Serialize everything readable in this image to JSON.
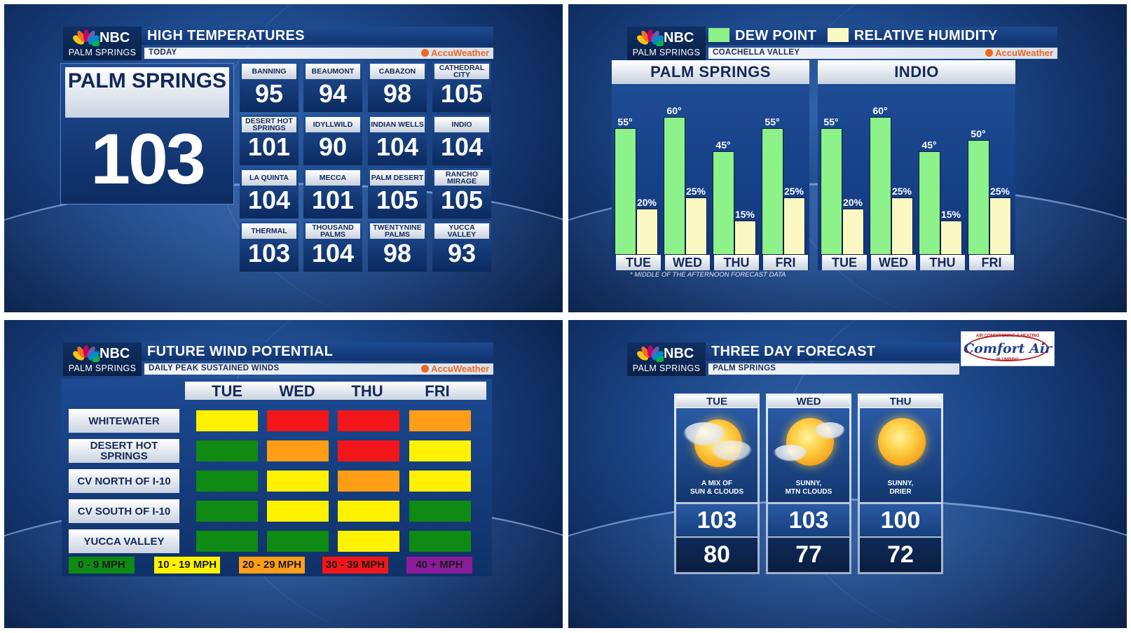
{
  "station": {
    "network": "NBC",
    "city": "PALM SPRINGS",
    "provider": "AccuWeather"
  },
  "panel1": {
    "title": "HIGH TEMPERATURES",
    "subtitle": "TODAY",
    "featured": {
      "name": "PALM SPRINGS",
      "value": "103"
    },
    "tiles": [
      {
        "name": "BANNING",
        "value": "95"
      },
      {
        "name": "BEAUMONT",
        "value": "94"
      },
      {
        "name": "CABAZON",
        "value": "98"
      },
      {
        "name": "CATHEDRAL CITY",
        "value": "105"
      },
      {
        "name": "DESERT HOT SPRINGS",
        "value": "101"
      },
      {
        "name": "IDYLLWILD",
        "value": "90"
      },
      {
        "name": "INDIAN WELLS",
        "value": "104"
      },
      {
        "name": "INDIO",
        "value": "104"
      },
      {
        "name": "LA QUINTA",
        "value": "104"
      },
      {
        "name": "MECCA",
        "value": "101"
      },
      {
        "name": "PALM DESERT",
        "value": "105"
      },
      {
        "name": "RANCHO MIRAGE",
        "value": "105"
      },
      {
        "name": "THERMAL",
        "value": "103"
      },
      {
        "name": "THOUSAND PALMS",
        "value": "104"
      },
      {
        "name": "TWENTYNINE PALMS",
        "value": "98"
      },
      {
        "name": "YUCCA VALLEY",
        "value": "93"
      }
    ]
  },
  "panel2": {
    "title_dew": "DEW POINT",
    "title_rh": "RELATIVE HUMIDITY",
    "subtitle": "COACHELLA VALLEY",
    "footnote": "* MIDDLE OF THE AFTERNOON FORECAST DATA",
    "colors": {
      "dew": "#8df28a",
      "rh": "#fbf8c4"
    }
  },
  "chart_data": [
    {
      "type": "bar",
      "title": "PALM SPRINGS",
      "categories": [
        "TUE",
        "WED",
        "THU",
        "FRI"
      ],
      "series": [
        {
          "name": "DEW POINT",
          "values": [
            55,
            60,
            45,
            55
          ],
          "labels": [
            "55°",
            "60°",
            "45°",
            "55°"
          ]
        },
        {
          "name": "RELATIVE HUMIDITY",
          "values": [
            20,
            25,
            15,
            25
          ],
          "labels": [
            "20%",
            "25%",
            "15%",
            "25%"
          ]
        }
      ]
    },
    {
      "type": "bar",
      "title": "INDIO",
      "categories": [
        "TUE",
        "WED",
        "THU",
        "FRI"
      ],
      "series": [
        {
          "name": "DEW POINT",
          "values": [
            55,
            60,
            45,
            50
          ],
          "labels": [
            "55°",
            "60°",
            "45°",
            "50°"
          ]
        },
        {
          "name": "RELATIVE HUMIDITY",
          "values": [
            20,
            25,
            15,
            25
          ],
          "labels": [
            "20%",
            "25%",
            "15%",
            "25%"
          ]
        }
      ]
    }
  ],
  "panel3": {
    "title": "FUTURE WIND POTENTIAL",
    "subtitle": "DAILY PEAK SUSTAINED WINDS",
    "days": [
      "TUE",
      "WED",
      "THU",
      "FRI"
    ],
    "rows": [
      {
        "name": "WHITEWATER",
        "levels": [
          "yellow",
          "red",
          "red",
          "orange"
        ]
      },
      {
        "name": "DESERT HOT SPRINGS",
        "levels": [
          "green",
          "orange",
          "red",
          "yellow"
        ]
      },
      {
        "name": "CV NORTH OF I-10",
        "levels": [
          "green",
          "yellow",
          "orange",
          "yellow"
        ]
      },
      {
        "name": "CV SOUTH OF I-10",
        "levels": [
          "green",
          "yellow",
          "yellow",
          "green"
        ]
      },
      {
        "name": "YUCCA VALLEY",
        "levels": [
          "green",
          "green",
          "yellow",
          "green"
        ]
      }
    ],
    "legend": [
      {
        "label": "0 - 9 MPH",
        "level": "green"
      },
      {
        "label": "10 - 19 MPH",
        "level": "yellow"
      },
      {
        "label": "20 - 29 MPH",
        "level": "orange"
      },
      {
        "label": "30 - 39 MPH",
        "level": "red"
      },
      {
        "label": "40 + MPH",
        "level": "purple"
      }
    ],
    "colors": {
      "green": "#0f8a12",
      "yellow": "#fff200",
      "orange": "#ff9e16",
      "red": "#f2161a",
      "purple": "#8a1c9a"
    }
  },
  "panel4": {
    "title": "THREE DAY FORECAST",
    "subtitle": "PALM SPRINGS",
    "sponsor": {
      "name": "Comfort Air",
      "tagline_top": "AIR CONDITIONING & HEATING",
      "tagline_bottom": "PLUMBING"
    },
    "days": [
      {
        "day": "TUE",
        "icon": "partly-cloudy-icon",
        "desc1": "A MIX OF",
        "desc2": "SUN & CLOUDS",
        "high": "103",
        "low": "80"
      },
      {
        "day": "WED",
        "icon": "sunny-mtn-clouds-icon",
        "desc1": "SUNNY,",
        "desc2": "MTN CLOUDS",
        "high": "103",
        "low": "77"
      },
      {
        "day": "THU",
        "icon": "sunny-icon",
        "desc1": "SUNNY,",
        "desc2": "DRIER",
        "high": "100",
        "low": "72"
      }
    ]
  }
}
